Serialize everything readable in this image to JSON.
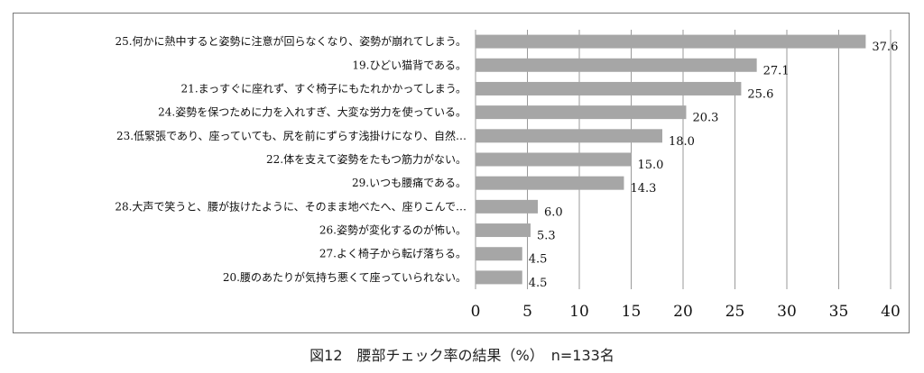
{
  "caption": "図12　腰部チェック率の結果（%）　n=133名",
  "chart_data": {
    "type": "bar",
    "orientation": "horizontal",
    "categories": [
      "25.何かに熱中すると姿勢に注意が回らなくなり、姿勢が崩れてしまう。",
      "19.ひどい猫背である。",
      "21.まっすぐに座れず、すぐ椅子にもたれかかってしまう。",
      "24.姿勢を保つために力を入れすぎ、大変な労力を使っている。",
      "23.低緊張であり、座っていても、尻を前にずらす浅掛けになり、自然…",
      "22.体を支えて姿勢をたもつ筋力がない。",
      "29.いつも腰痛である。",
      "28.大声で笑うと、腰が抜けたように、そのまま地べたへ、座りこんで…",
      "26.姿勢が変化するのが怖い。",
      "27.よく椅子から転げ落ちる。",
      "20.腰のあたりが気持ち悪くて座っていられない。"
    ],
    "values": [
      37.6,
      27.1,
      25.6,
      20.3,
      18.0,
      15.0,
      14.3,
      6.0,
      5.3,
      4.5,
      4.5
    ],
    "value_labels": [
      "37.6",
      "27.1",
      "25.6",
      "20.3",
      "18.0",
      "15.0",
      "14.3",
      "6.0",
      "5.3",
      "4.5",
      "4.5"
    ],
    "xlim": [
      0,
      40
    ],
    "xticks": [
      0,
      5,
      10,
      15,
      20,
      25,
      30,
      35,
      40
    ],
    "xlabel": "",
    "ylabel": "",
    "grid": "vertical",
    "bar_color": "#a6a6a6",
    "grid_color": "#9a9a9a"
  }
}
